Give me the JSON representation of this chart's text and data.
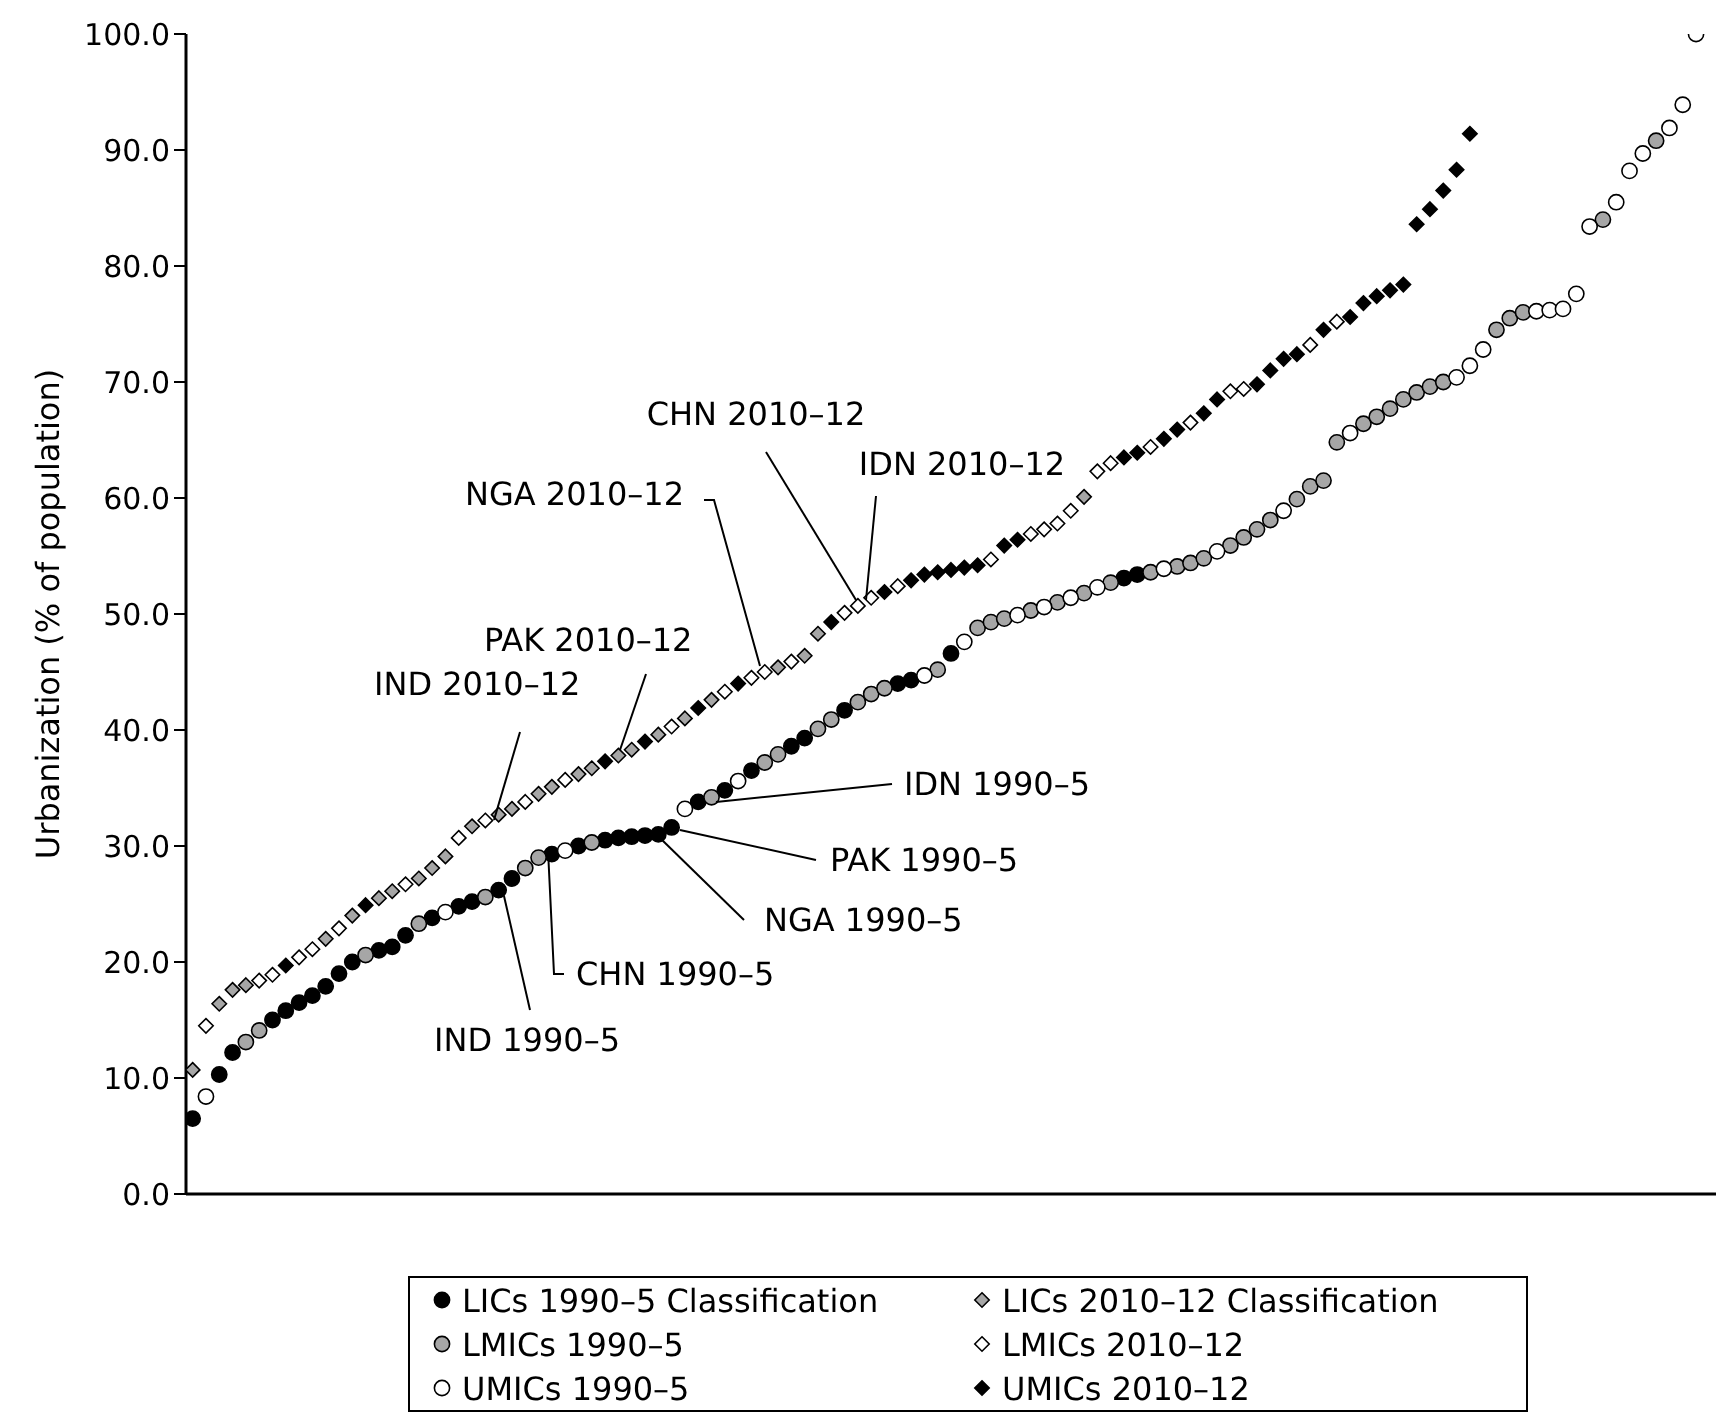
{
  "chart_data": {
    "type": "scatter",
    "ylabel": "Urbanization (% of population)",
    "categories": [
      null,
      null,
      null,
      null,
      null,
      null,
      null,
      null,
      null,
      null,
      null,
      null,
      null,
      null,
      null,
      null,
      null,
      null,
      null,
      null,
      null,
      null,
      null,
      null,
      null,
      null,
      null,
      null,
      null,
      null,
      null,
      null,
      null,
      null,
      null,
      null,
      null,
      null,
      null,
      null,
      null,
      null,
      null,
      null,
      null,
      null,
      null,
      null,
      null,
      null,
      null,
      null,
      null,
      null,
      null,
      null,
      null,
      null,
      null,
      null,
      null,
      null,
      null,
      null,
      null,
      null,
      null,
      null,
      null,
      null,
      null,
      null,
      null,
      null,
      null,
      null,
      null,
      null,
      null,
      null,
      null,
      null,
      null,
      null,
      null,
      null,
      null,
      null,
      null,
      null,
      null,
      null,
      null,
      null,
      null,
      null,
      null,
      null,
      null,
      null,
      null,
      null,
      null,
      null,
      null,
      null,
      null,
      null,
      null,
      null,
      null,
      null,
      null,
      null,
      null
    ],
    "ylim": [
      0,
      100
    ],
    "yticks": [
      {
        "value": 0,
        "label": "0.0"
      },
      {
        "value": 10,
        "label": "10.0"
      },
      {
        "value": 20,
        "label": "20.0"
      },
      {
        "value": 30,
        "label": "30.0"
      },
      {
        "value": 40,
        "label": "40.0"
      },
      {
        "value": 50,
        "label": "50.0"
      },
      {
        "value": 60,
        "label": "60.0"
      },
      {
        "value": 70,
        "label": "70.0"
      },
      {
        "value": 80,
        "label": "80.0"
      },
      {
        "value": 90,
        "label": "90.0"
      },
      {
        "value": 100,
        "label": "100.0"
      }
    ],
    "tick_labels": "y",
    "legend": "bottom",
    "series": [
      {
        "name": "LICs 1990–5 Classification",
        "color": "#000000",
        "marker": "circle",
        "values": [
          6.5,
          null,
          10.3,
          12.2,
          null,
          null,
          15.0,
          15.8,
          16.5,
          17.1,
          17.9,
          19.0,
          20.0,
          null,
          21.0,
          21.3,
          22.3,
          null,
          23.8,
          null,
          24.8,
          25.2,
          null,
          26.2,
          27.2,
          null,
          null,
          29.3,
          null,
          30.0,
          null,
          30.5,
          30.7,
          30.8,
          30.9,
          31.0,
          31.6,
          null,
          33.8,
          null,
          34.8,
          null,
          36.5,
          null,
          null,
          38.6,
          39.3,
          null,
          null,
          41.7,
          null,
          null,
          null,
          44.0,
          44.3,
          null,
          null,
          46.6,
          null,
          null,
          null,
          null,
          null,
          null,
          null,
          null,
          null,
          null,
          null,
          null,
          53.1,
          53.4,
          null,
          null,
          null,
          null,
          null,
          null,
          null,
          null,
          null,
          null,
          null,
          null,
          null,
          null,
          null,
          null,
          null,
          null,
          null,
          null,
          null,
          null,
          null,
          null,
          null,
          null,
          null,
          null,
          null,
          null,
          null,
          null,
          null,
          null,
          null,
          null,
          null,
          null,
          null,
          null,
          null,
          null,
          null
        ]
      },
      {
        "name": "LMICs 1990–5",
        "color": "#a6a6a6",
        "marker": "circle",
        "values": [
          null,
          null,
          null,
          null,
          13.1,
          14.1,
          null,
          null,
          null,
          null,
          null,
          null,
          null,
          20.6,
          null,
          null,
          null,
          23.3,
          null,
          null,
          null,
          null,
          25.6,
          null,
          null,
          28.1,
          29.0,
          null,
          null,
          null,
          30.3,
          null,
          null,
          null,
          null,
          null,
          null,
          null,
          null,
          34.2,
          null,
          null,
          null,
          37.2,
          37.9,
          null,
          null,
          40.1,
          40.9,
          null,
          42.4,
          43.1,
          43.6,
          null,
          null,
          null,
          45.2,
          null,
          null,
          48.8,
          49.3,
          49.6,
          null,
          50.3,
          null,
          51.0,
          null,
          51.8,
          null,
          52.7,
          null,
          null,
          53.6,
          null,
          54.1,
          54.4,
          54.8,
          null,
          55.9,
          56.6,
          57.3,
          58.1,
          null,
          59.9,
          61.0,
          61.5,
          64.8,
          null,
          66.4,
          67.0,
          67.7,
          68.5,
          69.1,
          69.6,
          70.0,
          null,
          null,
          null,
          74.5,
          75.5,
          76.0,
          null,
          null,
          null,
          null,
          null,
          84.0,
          null,
          null,
          null,
          90.8,
          null,
          null,
          null,
          null
        ]
      },
      {
        "name": "UMICs 1990–5",
        "color": "#ffffff",
        "marker": "circle",
        "values": [
          null,
          8.4,
          null,
          null,
          null,
          null,
          null,
          null,
          null,
          null,
          null,
          null,
          null,
          null,
          null,
          null,
          null,
          null,
          null,
          24.3,
          null,
          null,
          null,
          null,
          null,
          null,
          null,
          null,
          29.6,
          null,
          null,
          null,
          null,
          null,
          null,
          null,
          null,
          33.2,
          null,
          null,
          null,
          35.6,
          null,
          null,
          null,
          null,
          null,
          null,
          null,
          null,
          null,
          null,
          null,
          null,
          null,
          44.7,
          null,
          null,
          47.6,
          null,
          null,
          null,
          49.9,
          null,
          50.6,
          null,
          51.4,
          null,
          52.3,
          null,
          null,
          null,
          null,
          53.9,
          null,
          null,
          null,
          55.4,
          null,
          null,
          null,
          null,
          58.9,
          null,
          null,
          null,
          null,
          65.6,
          null,
          null,
          null,
          null,
          null,
          null,
          null,
          70.4,
          71.4,
          72.8,
          null,
          null,
          null,
          76.1,
          76.2,
          76.3,
          77.6,
          83.4,
          null,
          85.5,
          88.2,
          89.7,
          null,
          91.9,
          93.9,
          100.0,
          null
        ]
      },
      {
        "name": "LICs 2010–12 Classification",
        "color": "#a6a6a6",
        "marker": "diamond",
        "values": [
          10.7,
          null,
          16.4,
          17.6,
          18.0,
          null,
          null,
          null,
          null,
          null,
          22.0,
          null,
          24.0,
          null,
          25.5,
          26.1,
          null,
          27.2,
          28.1,
          29.1,
          null,
          31.7,
          null,
          32.7,
          33.2,
          null,
          34.5,
          35.1,
          null,
          36.2,
          36.7,
          null,
          37.8,
          38.3,
          null,
          39.6,
          null,
          41.0,
          null,
          42.6,
          null,
          null,
          null,
          null,
          45.4,
          null,
          46.4,
          48.3,
          null,
          null,
          null,
          null,
          null,
          null,
          null,
          null,
          null,
          null,
          null,
          null,
          null,
          null,
          null,
          null,
          null,
          null,
          null,
          60.1,
          null,
          null,
          null,
          null,
          null,
          null,
          null,
          null,
          null,
          null,
          null,
          null,
          null,
          null,
          null,
          null,
          null,
          null,
          null,
          null,
          null,
          null,
          null,
          null,
          null,
          null,
          null,
          null,
          null,
          null,
          null,
          null,
          null,
          null,
          null,
          null,
          null,
          null,
          null,
          null,
          null,
          null,
          null,
          null,
          null,
          null,
          null
        ]
      },
      {
        "name": "LMICs 2010–12",
        "color": "#ffffff",
        "marker": "diamond",
        "values": [
          null,
          14.5,
          null,
          null,
          null,
          18.4,
          18.9,
          null,
          20.4,
          21.1,
          null,
          22.9,
          null,
          null,
          null,
          null,
          26.7,
          null,
          null,
          null,
          30.7,
          null,
          32.2,
          null,
          null,
          33.8,
          null,
          null,
          35.7,
          null,
          null,
          null,
          null,
          null,
          null,
          null,
          40.3,
          null,
          null,
          null,
          43.3,
          null,
          44.5,
          45.0,
          null,
          45.9,
          null,
          null,
          null,
          50.1,
          50.7,
          51.4,
          null,
          52.4,
          null,
          null,
          null,
          null,
          null,
          null,
          54.7,
          null,
          null,
          56.9,
          57.3,
          57.8,
          58.9,
          null,
          62.3,
          63.0,
          null,
          null,
          64.4,
          null,
          null,
          66.5,
          null,
          null,
          69.2,
          69.4,
          null,
          null,
          null,
          null,
          73.2,
          null,
          75.2,
          null,
          null,
          null,
          null,
          null,
          null,
          null,
          null,
          null,
          null,
          null,
          null,
          null,
          null,
          null,
          null,
          null,
          null,
          null,
          null,
          null,
          null,
          null,
          null,
          null,
          null,
          null,
          null
        ]
      },
      {
        "name": "UMICs 2010–12",
        "color": "#000000",
        "marker": "diamond",
        "values": [
          null,
          null,
          null,
          null,
          null,
          null,
          null,
          19.7,
          null,
          null,
          null,
          null,
          null,
          24.9,
          null,
          null,
          null,
          null,
          null,
          null,
          null,
          null,
          null,
          null,
          null,
          null,
          null,
          null,
          null,
          null,
          null,
          37.3,
          null,
          null,
          39.0,
          null,
          null,
          null,
          41.9,
          null,
          null,
          44.0,
          null,
          null,
          null,
          null,
          null,
          null,
          49.3,
          null,
          null,
          null,
          51.9,
          null,
          52.9,
          53.4,
          53.6,
          53.8,
          54.0,
          54.2,
          null,
          55.9,
          56.4,
          null,
          null,
          null,
          null,
          null,
          null,
          null,
          63.5,
          63.9,
          null,
          65.1,
          65.9,
          null,
          67.3,
          68.5,
          null,
          null,
          69.8,
          71.0,
          72.0,
          72.4,
          null,
          74.5,
          null,
          75.6,
          76.8,
          77.4,
          77.9,
          78.4,
          83.6,
          84.9,
          86.5,
          88.3,
          91.4,
          null,
          null,
          null,
          null,
          null,
          null,
          null,
          null,
          null,
          null,
          null,
          null,
          null,
          null,
          null,
          null,
          null,
          null
        ]
      }
    ],
    "annotations": [
      "CHN 2010–12",
      "IDN 2010–12",
      "NGA 2010–12",
      "PAK 2010–12",
      "IND 2010–12",
      "IDN 1990–5",
      "PAK 1990–5",
      "NGA 1990–5",
      "CHN 1990–5",
      "IND 1990–5"
    ]
  }
}
